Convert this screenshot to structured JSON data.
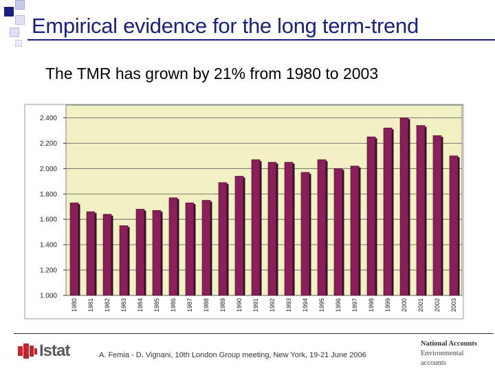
{
  "header": {
    "title": "Empirical evidence for the long term-trend",
    "subtitle": "The TMR has grown by 21% from 1980 to 2003"
  },
  "footer": {
    "logo_text": "Istat",
    "citation": "A. Femia - D. Vignani, 10th London Group meeting, New York, 19-21 June 2006",
    "unit_line1": "National Accounts",
    "unit_line2": "Environmental",
    "unit_line3": "accounts"
  },
  "colors": {
    "title": "#1a1f80",
    "plot_background": "#f2f1c4",
    "bar_fill": "#8a1e5a",
    "bar_shadow": "#1e1e1e",
    "logo_red": "#c0272d"
  },
  "chart_data": {
    "type": "bar",
    "title": "",
    "xlabel": "",
    "ylabel": "",
    "ylim": [
      1.0,
      2.5
    ],
    "yticks": [
      1.0,
      1.2,
      1.4,
      1.6,
      1.8,
      2.0,
      2.2,
      2.4
    ],
    "ytick_labels": [
      "1.000",
      "1.200",
      "1.400",
      "1.600",
      "1.800",
      "2.000",
      "2.200",
      "2.400"
    ],
    "grid": "horizontal",
    "categories": [
      "1980",
      "1981",
      "1982",
      "1983",
      "1984",
      "1985",
      "1986",
      "1987",
      "1988",
      "1989",
      "1990",
      "1991",
      "1992",
      "1993",
      "1994",
      "1995",
      "1996",
      "1997",
      "1998",
      "1999",
      "2000",
      "2001",
      "2002",
      "2003"
    ],
    "values": [
      1.73,
      1.66,
      1.64,
      1.55,
      1.68,
      1.67,
      1.77,
      1.73,
      1.75,
      1.89,
      1.94,
      2.07,
      2.05,
      2.05,
      1.97,
      2.07,
      2.0,
      2.02,
      2.25,
      2.32,
      2.4,
      2.34,
      2.26,
      2.1
    ]
  }
}
